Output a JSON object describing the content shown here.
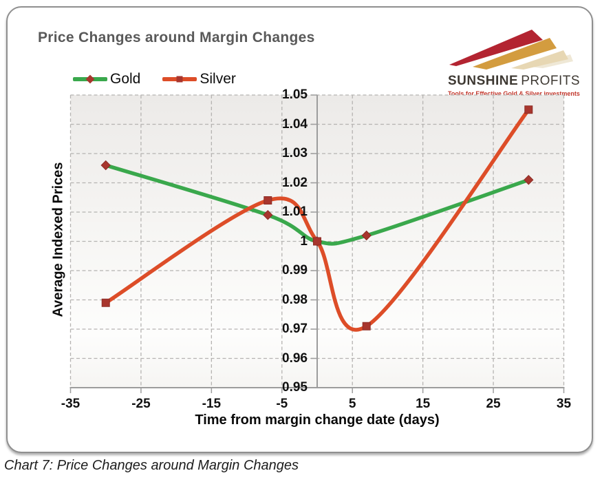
{
  "caption": {
    "text": "Chart 7: Price Changes around Margin Changes"
  },
  "logo": {
    "name_bold": "SUNSHINE",
    "name_regular": "PROFITS",
    "tagline": "Tools for Effective Gold & Silver investments"
  },
  "colors": {
    "title": "#595959",
    "gold_line": "#3aa84c",
    "silver_line": "#dd4d28",
    "marker_fill": "#a8362e",
    "marker_edge": "#8d2d26",
    "grid": "#b5b3b1",
    "axis": "#9c9c9c",
    "logo_red": "#b32431",
    "logo_gold": "#d39c3f",
    "logo_beige": "#e7d7b3",
    "logo_faint": "#efe8d6",
    "tagline_red": "#c2362b"
  },
  "chart_data": {
    "type": "line",
    "title": "Price Changes around Margin Changes",
    "xlabel": "Time from margin change date (days)",
    "ylabel": "Average Indexed Prices",
    "xlim": [
      -35,
      35
    ],
    "ylim": [
      0.95,
      1.05
    ],
    "grid": "dashed",
    "legend_position": "top-left",
    "x_ticks": [
      -35,
      -25,
      -15,
      -5,
      5,
      15,
      25,
      35
    ],
    "x_tick_labels": [
      "-35",
      "-25",
      "-15",
      "-5",
      "5",
      "15",
      "25",
      "35"
    ],
    "y_ticks": [
      1.05,
      1.04,
      1.03,
      1.02,
      1.01,
      1.0,
      0.99,
      0.98,
      0.97,
      0.96,
      0.95
    ],
    "y_tick_labels": [
      "1.05",
      "1.04",
      "1.03",
      "1.02",
      "1.01",
      "1",
      "0.99",
      "0.98",
      "0.97",
      "0.96",
      "0.95"
    ],
    "series": [
      {
        "name": "Gold",
        "color": "#3aa84c",
        "marker": "diamond",
        "marker_color": "#a8362e",
        "x": [
          -30,
          -7,
          0,
          7,
          30
        ],
        "values": [
          1.026,
          1.009,
          1.0,
          1.002,
          1.021
        ]
      },
      {
        "name": "Silver",
        "color": "#dd4d28",
        "marker": "square",
        "marker_color": "#a8362e",
        "x": [
          -30,
          -7,
          0,
          7,
          30
        ],
        "values": [
          0.979,
          1.014,
          1.0,
          0.971,
          1.045
        ]
      }
    ]
  }
}
